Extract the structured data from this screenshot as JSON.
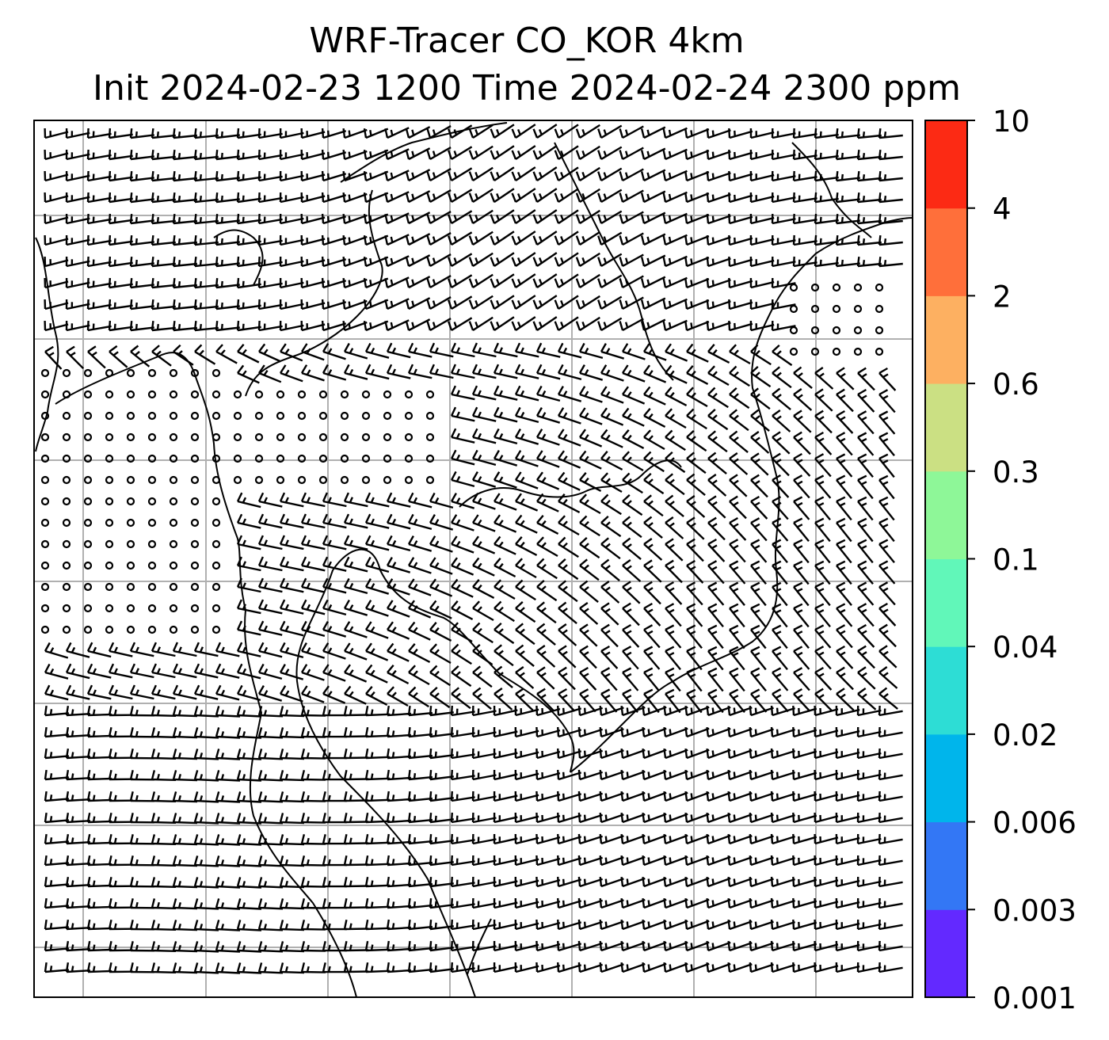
{
  "title": {
    "line1": "WRF-Tracer CO_KOR 4km",
    "line2": "Init 2024-02-23 1200 Time 2024-02-24 2300 ppm"
  },
  "colorbar": {
    "levels": [
      "0.001",
      "0.003",
      "0.006",
      "0.02",
      "0.04",
      "0.1",
      "0.3",
      "0.6",
      "2",
      "4",
      "10"
    ],
    "colors": [
      "#6329ff",
      "#3377f5",
      "#00b5eb",
      "#2dddd5",
      "#61f7b9",
      "#8ef798",
      "#cbe083",
      "#fdb061",
      "#ff6f3a",
      "#fc2a14"
    ]
  },
  "colors": {
    "grid": "#b0b0b0",
    "coast": "#000000",
    "barb": "#000000"
  }
}
